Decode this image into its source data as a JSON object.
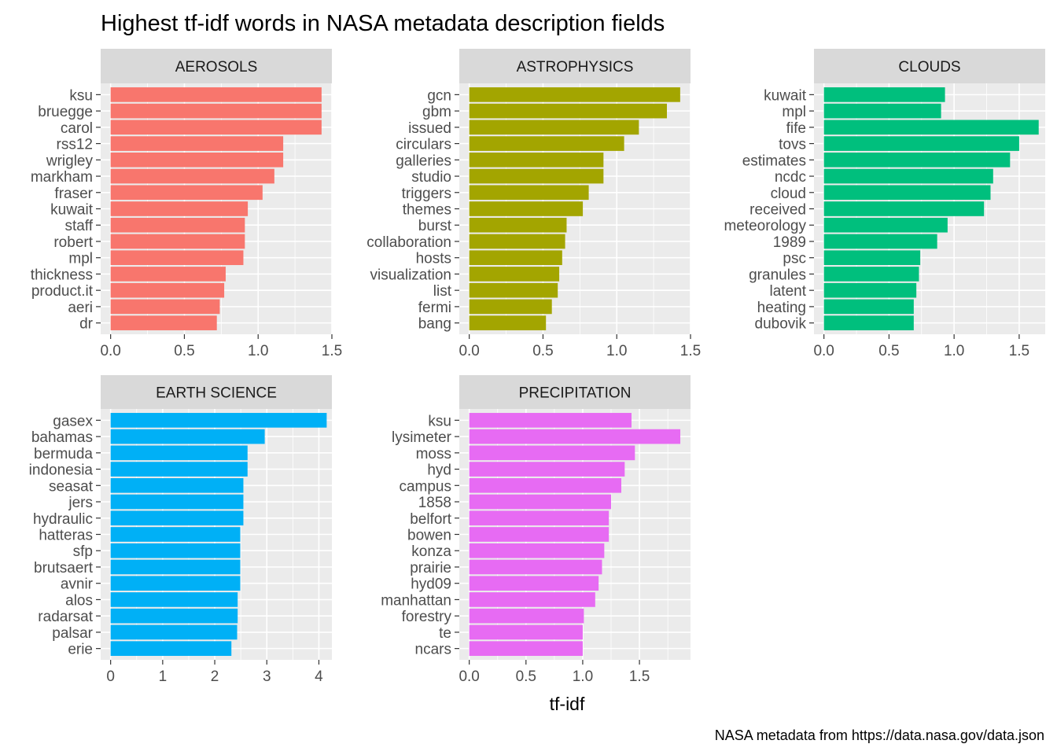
{
  "chart_data": {
    "type": "bar",
    "orientation": "horizontal",
    "title": "Highest tf-idf words in NASA metadata description fields",
    "xlabel": "tf-idf",
    "ylabel": "",
    "caption": "NASA metadata from https://data.nasa.gov/data.json",
    "grid": true,
    "legend": "none",
    "facets": [
      {
        "name": "AEROSOLS",
        "color": "#F8766D",
        "xlim": [
          0,
          1.5
        ],
        "xticks": [
          "0.0",
          "0.5",
          "1.0",
          "1.5"
        ],
        "xtick_values": [
          0,
          0.5,
          1.0,
          1.5
        ],
        "categories": [
          "ksu",
          "bruegge",
          "carol",
          "rss12",
          "wrigley",
          "markham",
          "fraser",
          "kuwait",
          "staff",
          "robert",
          "mpl",
          "thickness",
          "product.it",
          "aeri",
          "dr"
        ],
        "values": [
          1.43,
          1.43,
          1.43,
          1.17,
          1.17,
          1.11,
          1.03,
          0.93,
          0.91,
          0.91,
          0.9,
          0.78,
          0.77,
          0.74,
          0.72
        ]
      },
      {
        "name": "ASTROPHYSICS",
        "color": "#A3A500",
        "xlim": [
          0,
          1.5
        ],
        "xticks": [
          "0.0",
          "0.5",
          "1.0",
          "1.5"
        ],
        "xtick_values": [
          0,
          0.5,
          1.0,
          1.5
        ],
        "categories": [
          "gcn",
          "gbm",
          "issued",
          "circulars",
          "galleries",
          "studio",
          "triggers",
          "themes",
          "burst",
          "collaboration",
          "hosts",
          "visualization",
          "list",
          "fermi",
          "bang"
        ],
        "values": [
          1.43,
          1.34,
          1.15,
          1.05,
          0.91,
          0.91,
          0.81,
          0.77,
          0.66,
          0.65,
          0.63,
          0.61,
          0.6,
          0.56,
          0.52
        ]
      },
      {
        "name": "CLOUDS",
        "color": "#00BF7D",
        "xlim": [
          0,
          1.7
        ],
        "xticks": [
          "0.0",
          "0.5",
          "1.0",
          "1.5"
        ],
        "xtick_values": [
          0,
          0.5,
          1.0,
          1.5
        ],
        "categories": [
          "kuwait",
          "mpl",
          "fife",
          "tovs",
          "estimates",
          "ncdc",
          "cloud",
          "received",
          "meteorology",
          "1989",
          "psc",
          "granules",
          "latent",
          "heating",
          "dubovik"
        ],
        "values": [
          0.93,
          0.9,
          1.65,
          1.5,
          1.43,
          1.3,
          1.28,
          1.23,
          0.95,
          0.87,
          0.74,
          0.73,
          0.71,
          0.69,
          0.69
        ]
      },
      {
        "name": "EARTH SCIENCE",
        "color": "#00B0F6",
        "xlim": [
          0,
          4.25
        ],
        "xticks": [
          "0",
          "1",
          "2",
          "3",
          "4"
        ],
        "xtick_values": [
          0,
          1,
          2,
          3,
          4
        ],
        "categories": [
          "gasex",
          "bahamas",
          "bermuda",
          "indonesia",
          "seasat",
          "jers",
          "hydraulic",
          "hatteras",
          "sfp",
          "brutsaert",
          "avnir",
          "alos",
          "radarsat",
          "palsar",
          "erie"
        ],
        "values": [
          4.15,
          2.96,
          2.63,
          2.63,
          2.55,
          2.55,
          2.55,
          2.49,
          2.49,
          2.49,
          2.49,
          2.44,
          2.44,
          2.43,
          2.32
        ]
      },
      {
        "name": "PRECIPITATION",
        "color": "#E76BF3",
        "xlim": [
          0,
          1.95
        ],
        "xticks": [
          "0.0",
          "0.5",
          "1.0",
          "1.5"
        ],
        "xtick_values": [
          0,
          0.5,
          1.0,
          1.5
        ],
        "categories": [
          "ksu",
          "lysimeter",
          "moss",
          "hyd",
          "campus",
          "1858",
          "belfort",
          "bowen",
          "konza",
          "prairie",
          "hyd09",
          "manhattan",
          "forestry",
          "te",
          "ncars"
        ],
        "values": [
          1.43,
          1.86,
          1.46,
          1.37,
          1.34,
          1.25,
          1.23,
          1.23,
          1.19,
          1.17,
          1.14,
          1.11,
          1.01,
          1.0,
          1.0
        ]
      }
    ]
  }
}
